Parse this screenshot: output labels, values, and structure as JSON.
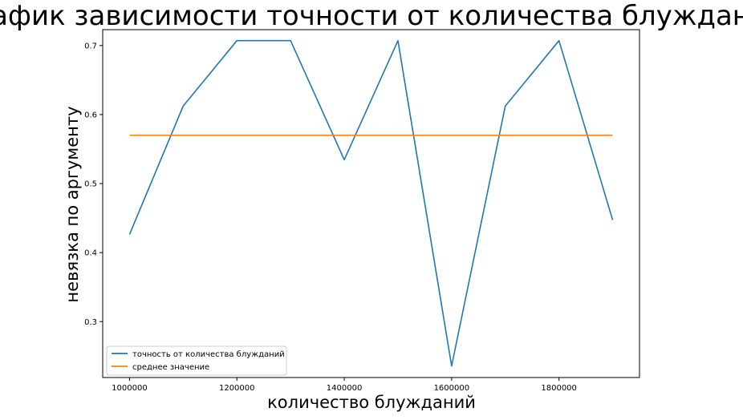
{
  "chart_data": {
    "type": "line",
    "title": "График зависимости точности от количества блужданий",
    "xlabel": "количество блужданий",
    "ylabel": "невязка по аргументу",
    "x": [
      1000000,
      1100000,
      1200000,
      1300000,
      1400000,
      1500000,
      1600000,
      1700000,
      1800000,
      1900000
    ],
    "xlim": [
      950000,
      1950000
    ],
    "ylim": [
      0.219,
      0.723
    ],
    "xticks": [
      1000000,
      1200000,
      1400000,
      1600000,
      1800000
    ],
    "xtick_labels": [
      "1000000",
      "1200000",
      "1400000",
      "1600000",
      "1800000"
    ],
    "yticks": [
      0.3,
      0.4,
      0.5,
      0.6,
      0.7
    ],
    "ytick_labels": [
      "0.3",
      "0.4",
      "0.5",
      "0.6",
      "0.7"
    ],
    "grid": false,
    "legend_position": "lower-left",
    "series": [
      {
        "name": "точность от количества блужданий",
        "color": "#1f77b4",
        "values": [
          0.4264,
          0.6124,
          0.7071,
          0.7071,
          0.5345,
          0.7071,
          0.2357,
          0.6124,
          0.7071,
          0.4472
        ]
      },
      {
        "name": "среднее значение",
        "color": "#ff7f0e",
        "values": [
          0.57,
          0.57,
          0.57,
          0.57,
          0.57,
          0.57,
          0.57,
          0.57,
          0.57,
          0.57
        ]
      }
    ]
  }
}
